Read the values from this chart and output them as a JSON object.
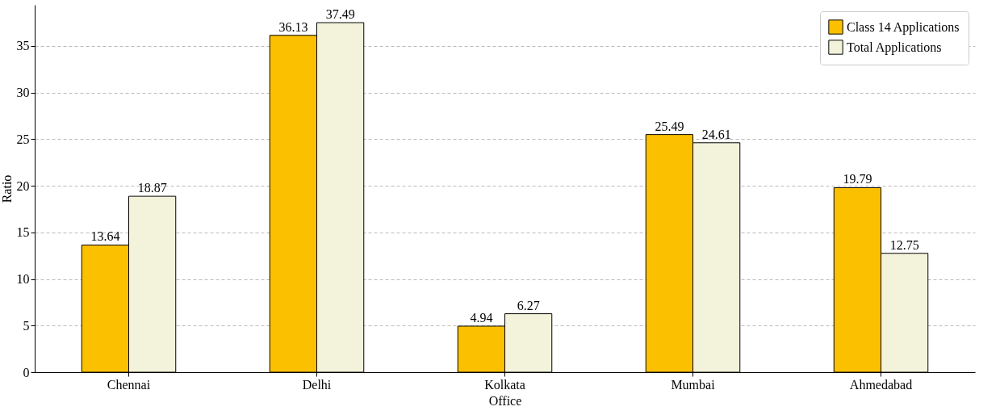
{
  "chart_data": {
    "type": "bar",
    "xlabel": "Office",
    "ylabel": "Ratio",
    "categories": [
      "Chennai",
      "Delhi",
      "Kolkata",
      "Mumbai",
      "Ahmedabad"
    ],
    "series": [
      {
        "name": "Class 14 Applications",
        "color": "#fbc000",
        "values": [
          13.64,
          36.13,
          4.94,
          25.49,
          19.79
        ]
      },
      {
        "name": "Total Applications",
        "color": "#f3f3dc",
        "values": [
          18.87,
          37.49,
          6.27,
          24.61,
          12.75
        ]
      }
    ],
    "ylim": [
      0,
      39.4
    ],
    "yticks": [
      0,
      5,
      10,
      15,
      20,
      25,
      30,
      35
    ],
    "grid": "y",
    "legend": "top right",
    "data_labels": true
  }
}
